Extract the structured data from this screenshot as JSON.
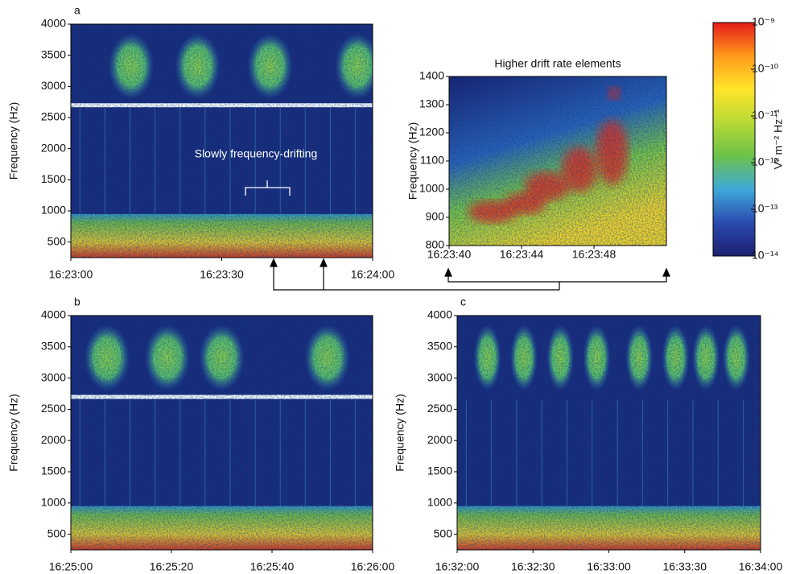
{
  "chart_data": [
    {
      "type": "spectrogram",
      "label": "a",
      "ylabel": "Frequency (Hz)",
      "annotation": "Slowly frequency-drifting",
      "xlim": [
        0,
        60
      ],
      "xticks": [
        {
          "value": 0,
          "label": "16:23:00"
        },
        {
          "value": 30,
          "label": "16:23:30"
        },
        {
          "value": 60,
          "label": "16:24:00"
        }
      ],
      "ylim": [
        250,
        4000
      ],
      "yticks": [
        500,
        1000,
        1500,
        2000,
        2500,
        3000,
        3500,
        4000
      ]
    },
    {
      "type": "spectrogram",
      "title": "Higher drift rate elements",
      "ylabel": "Frequency (Hz)",
      "xlim": [
        40,
        52
      ],
      "xticks": [
        {
          "value": 40,
          "label": "16:23:40"
        },
        {
          "value": 44,
          "label": "16:23:44"
        },
        {
          "value": 48,
          "label": "16:23:48"
        }
      ],
      "ylim": [
        800,
        1400
      ],
      "yticks": [
        800,
        900,
        1000,
        1100,
        1200,
        1300,
        1400
      ]
    },
    {
      "type": "spectrogram",
      "label": "b",
      "ylabel": "Frequency (Hz)",
      "xlim": [
        0,
        60
      ],
      "xticks": [
        {
          "value": 0,
          "label": "16:25:00"
        },
        {
          "value": 20,
          "label": "16:25:20"
        },
        {
          "value": 40,
          "label": "16:25:40"
        },
        {
          "value": 60,
          "label": "16:26:00"
        }
      ],
      "ylim": [
        250,
        4000
      ],
      "yticks": [
        500,
        1000,
        1500,
        2000,
        2500,
        3000,
        3500,
        4000
      ]
    },
    {
      "type": "spectrogram",
      "label": "c",
      "ylabel": "Frequency (Hz)",
      "xlim": [
        0,
        120
      ],
      "xticks": [
        {
          "value": 0,
          "label": "16:32:00"
        },
        {
          "value": 30,
          "label": "16:32:30"
        },
        {
          "value": 60,
          "label": "16:33:00"
        },
        {
          "value": 90,
          "label": "16:33:30"
        },
        {
          "value": 120,
          "label": "16:34:00"
        }
      ],
      "ylim": [
        250,
        4000
      ],
      "yticks": [
        500,
        1000,
        1500,
        2000,
        2500,
        3000,
        3500,
        4000
      ]
    },
    {
      "type": "colorbar",
      "label": "V² m⁻² Hz⁻¹",
      "scale": "log",
      "zlim": [
        1e-14,
        1e-09
      ],
      "colors": [
        "#1c1f6e",
        "#2a4bb0",
        "#3fa8d8",
        "#6cc24a",
        "#b7d935",
        "#ffe52a",
        "#ff9a1a",
        "#e51b1b"
      ],
      "ticks": [
        {
          "value": 1e-09,
          "label": "10⁻⁹"
        },
        {
          "value": 1e-10,
          "label": "10⁻¹⁰"
        },
        {
          "value": 1e-11,
          "label": "10⁻¹¹"
        },
        {
          "value": 1e-12,
          "label": "10⁻¹²"
        },
        {
          "value": 1e-13,
          "label": "10⁻¹³"
        },
        {
          "value": 1e-14,
          "label": "10⁻¹⁴"
        }
      ]
    }
  ]
}
